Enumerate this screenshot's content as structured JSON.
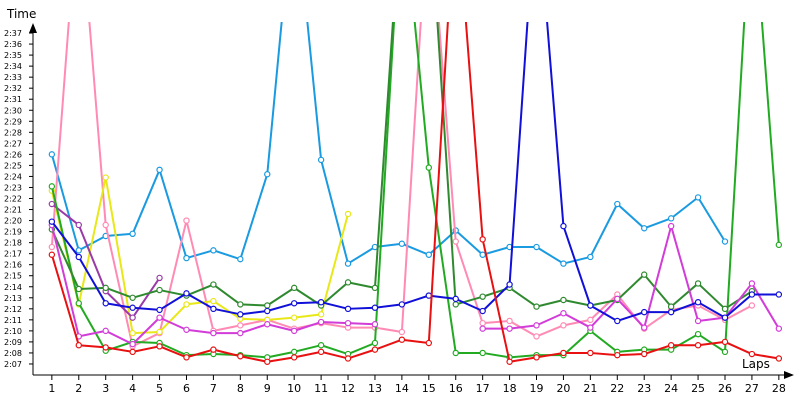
{
  "chart_data": {
    "type": "line",
    "title": "",
    "xlabel": "Laps",
    "ylabel": "Time",
    "x": [
      1,
      2,
      3,
      4,
      5,
      6,
      7,
      8,
      9,
      10,
      11,
      12,
      13,
      14,
      15,
      16,
      17,
      18,
      19,
      20,
      21,
      22,
      23,
      24,
      25,
      26,
      27,
      28
    ],
    "xlim": [
      0.3,
      28.6
    ],
    "ylim": [
      126,
      158
    ],
    "ylim_unit": "seconds (tick labels m:ss)",
    "ytick_values": [
      127,
      128,
      129,
      130,
      131,
      132,
      133,
      134,
      135,
      136,
      137,
      138,
      139,
      140,
      141,
      142,
      143,
      144,
      145,
      146,
      147,
      148,
      149,
      150,
      151,
      152,
      153,
      154,
      155,
      156,
      157
    ],
    "ytick_labels": [
      "2:07",
      "2:08",
      "2:09",
      "2:10",
      "2:11",
      "2:12",
      "2:13",
      "2:14",
      "2:15",
      "2:16",
      "2:17",
      "2:18",
      "2:19",
      "2:20",
      "2:21",
      "2:22",
      "2:23",
      "2:24",
      "2:25",
      "2:26",
      "2:27",
      "2:28",
      "2:29",
      "2:30",
      "2:31",
      "2:32",
      "2:33",
      "2:34",
      "2:35",
      "2:36",
      "2:37"
    ],
    "grid": false,
    "legend": "none",
    "series": [
      {
        "color": "#1a9ae0",
        "values": [
          146.0,
          137.3,
          138.6,
          138.8,
          144.6,
          136.6,
          137.3,
          136.5,
          144.2,
          170,
          145.5,
          136.1,
          137.6,
          137.9,
          136.9,
          139.1,
          136.9,
          137.6,
          137.6,
          136.1,
          136.7,
          141.5,
          139.3,
          140.2,
          142.1,
          138.1,
          null,
          null
        ]
      },
      {
        "color": "#ff8ab4",
        "values": [
          137.6,
          170,
          139.6,
          128.6,
          129.8,
          140.0,
          130.0,
          130.5,
          131.0,
          130.2,
          130.7,
          130.3,
          130.3,
          129.9,
          170,
          138.1,
          130.7,
          130.9,
          129.5,
          130.5,
          131.0,
          133.3,
          130.2,
          131.9,
          132.3,
          131.0,
          132.3,
          null
        ]
      },
      {
        "color": "#e8e818",
        "values": [
          142.7,
          132.4,
          143.9,
          129.8,
          129.9,
          132.4,
          132.7,
          131.1,
          131.0,
          131.2,
          131.5,
          140.6,
          null,
          null,
          null,
          null,
          null,
          null,
          null,
          null,
          null,
          null,
          null,
          null,
          null,
          null,
          null,
          null
        ]
      },
      {
        "color": "#9a3aa8",
        "values": [
          141.5,
          139.6,
          133.6,
          131.2,
          134.8,
          null,
          null,
          null,
          null,
          null,
          null,
          null,
          null,
          null,
          null,
          null,
          null,
          null,
          null,
          null,
          null,
          null,
          null,
          null,
          null,
          null,
          null,
          null
        ]
      },
      {
        "color": "#22aa22",
        "values": [
          143.1,
          132.5,
          128.2,
          129.0,
          128.9,
          127.8,
          127.9,
          127.8,
          127.6,
          128.1,
          128.7,
          127.9,
          128.9,
          170,
          144.8,
          128.0,
          128.0,
          127.6,
          127.8,
          127.8,
          130.0,
          128.1,
          128.3,
          128.3,
          129.7,
          128.1,
          170,
          137.8
        ]
      },
      {
        "color": "#2f8a2f",
        "values": [
          139.2,
          133.8,
          133.9,
          133.0,
          133.7,
          133.2,
          134.2,
          132.4,
          132.3,
          133.9,
          132.3,
          134.4,
          133.9,
          170,
          170,
          132.4,
          133.1,
          133.9,
          132.2,
          132.8,
          132.3,
          132.8,
          135.1,
          132.2,
          134.3,
          132.0,
          133.6,
          null
        ]
      },
      {
        "color": "#d23cd8",
        "values": [
          139.6,
          129.5,
          130.0,
          128.8,
          131.2,
          130.1,
          129.8,
          129.8,
          130.6,
          130.0,
          130.8,
          130.7,
          130.6,
          null,
          null,
          null,
          130.2,
          130.2,
          130.5,
          131.6,
          130.3,
          132.9,
          130.3,
          139.5,
          130.9,
          131.2,
          134.3,
          130.2
        ]
      },
      {
        "color": "#1010d8",
        "values": [
          139.9,
          136.7,
          132.5,
          132.1,
          131.9,
          133.4,
          132.0,
          131.5,
          131.8,
          132.5,
          132.6,
          132.0,
          132.1,
          132.4,
          133.2,
          132.9,
          131.8,
          134.2,
          170,
          139.5,
          132.3,
          130.9,
          131.7,
          131.7,
          132.6,
          131.2,
          133.3,
          133.3
        ]
      },
      {
        "color": "#e81010",
        "values": [
          136.9,
          128.7,
          128.5,
          128.1,
          128.6,
          127.6,
          128.3,
          127.7,
          127.2,
          127.6,
          128.1,
          127.5,
          128.3,
          129.2,
          128.9,
          170,
          138.3,
          127.2,
          127.6,
          128.0,
          128.0,
          127.8,
          127.9,
          128.7,
          128.7,
          129.0,
          127.9,
          127.5
        ]
      }
    ]
  }
}
